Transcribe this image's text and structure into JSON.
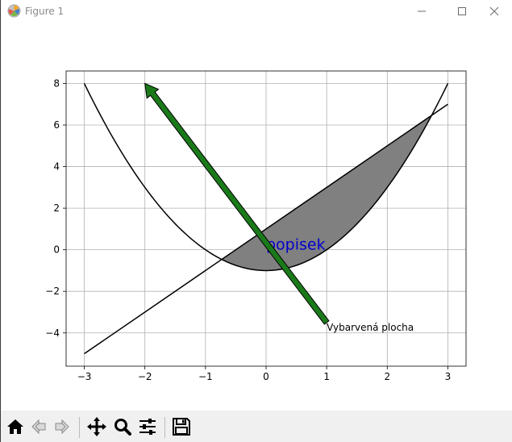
{
  "window": {
    "title": "Figure 1",
    "controls": {
      "minimize": "—",
      "maximize": "☐",
      "close": "✕"
    }
  },
  "toolbar": {
    "buttons": [
      {
        "name": "home",
        "icon": "home-icon"
      },
      {
        "name": "back",
        "icon": "back-arrow-icon"
      },
      {
        "name": "forward",
        "icon": "forward-arrow-icon"
      },
      {
        "name": "pan",
        "icon": "move-icon"
      },
      {
        "name": "zoom",
        "icon": "magnifier-icon"
      },
      {
        "name": "configure",
        "icon": "sliders-icon"
      },
      {
        "name": "save",
        "icon": "floppy-icon"
      }
    ]
  },
  "chart_data": {
    "type": "line",
    "xlim": [
      -3.3,
      3.3
    ],
    "ylim": [
      -5.6,
      8.6
    ],
    "xticks": [
      -3,
      -2,
      -1,
      0,
      1,
      2,
      3
    ],
    "yticks": [
      -4,
      -2,
      0,
      2,
      4,
      6,
      8
    ],
    "xtick_labels": [
      "−3",
      "−2",
      "−1",
      "0",
      "1",
      "2",
      "3"
    ],
    "ytick_labels": [
      "−4",
      "−2",
      "0",
      "2",
      "4",
      "6",
      "8"
    ],
    "grid": true,
    "series": [
      {
        "function": "y = x^2 - 1",
        "x_range": [
          -3,
          3
        ],
        "color": "#000000"
      },
      {
        "function": "y = 2x + 1",
        "x_range": [
          -3,
          3
        ],
        "color": "#000000"
      }
    ],
    "fill_between": {
      "x_range": [
        -0.732,
        2.732
      ],
      "color": "#808080"
    },
    "annotations": [
      {
        "text": "popisek",
        "x": 0,
        "y": 0,
        "color": "#0000cc",
        "fontsize": "large"
      },
      {
        "text": "Vybarvená plocha",
        "x": 1,
        "y": -3.9,
        "arrow_from": [
          1,
          -3.5
        ],
        "arrow_to": [
          -2,
          8
        ],
        "arrow_color": "#1a7a1a"
      }
    ]
  }
}
